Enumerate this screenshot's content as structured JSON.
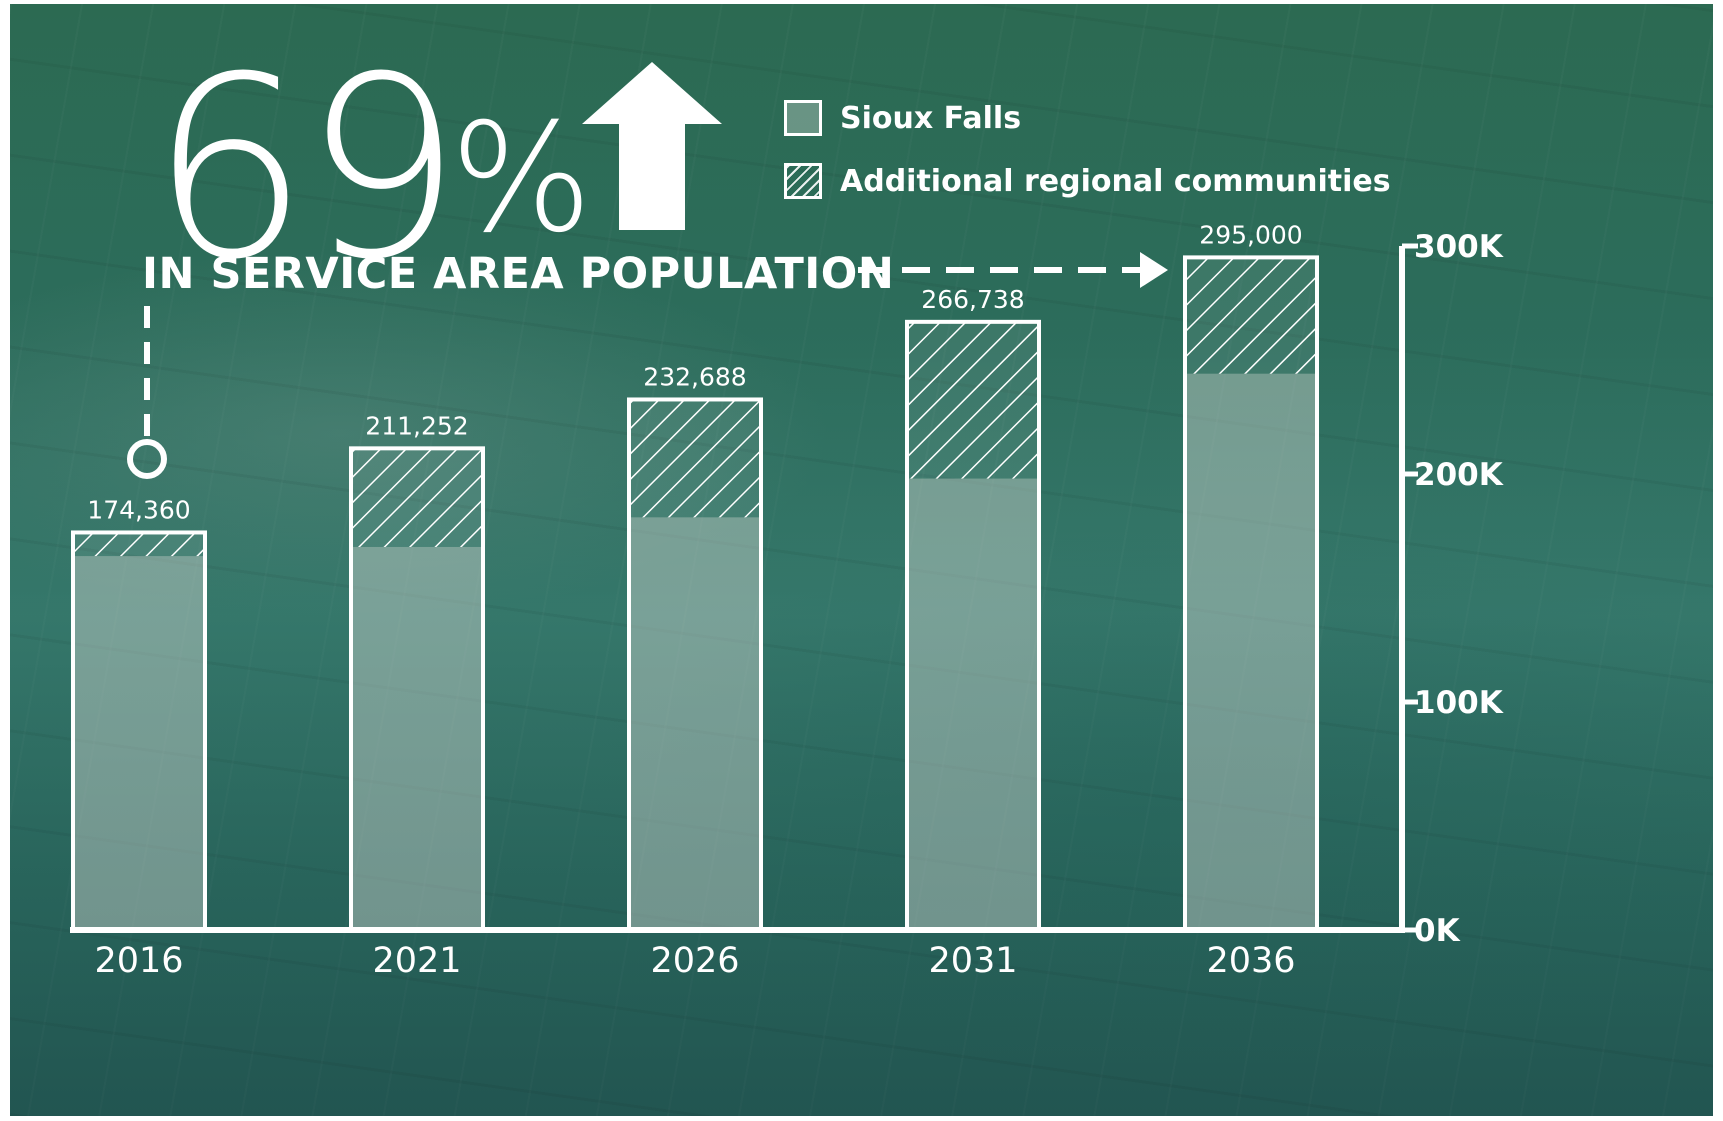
{
  "headline": {
    "big_number": "69",
    "percent_sign": "%",
    "subtitle": "IN SERVICE AREA POPULATION"
  },
  "legend": {
    "items": [
      {
        "label": "Sioux Falls",
        "style": "solid"
      },
      {
        "label": "Additional regional communities",
        "style": "hatched"
      }
    ]
  },
  "colors": {
    "bar_outline": "#ffffff",
    "bar_fill": "#d9dcd6",
    "text": "#ffffff",
    "background": "#2f7262"
  },
  "chart_data": {
    "type": "bar",
    "stacked": true,
    "title": "69% IN SERVICE AREA POPULATION",
    "categories": [
      "2016",
      "2021",
      "2026",
      "2031",
      "2036"
    ],
    "series": [
      {
        "name": "Sioux Falls",
        "values": [
          164000,
          168000,
          181000,
          198000,
          244000
        ]
      },
      {
        "name": "Additional regional communities",
        "values": [
          10360,
          43252,
          51688,
          68738,
          51000
        ]
      }
    ],
    "totals": [
      174360,
      211252,
      232688,
      266738,
      295000
    ],
    "total_labels": [
      "174,360",
      "211,252",
      "232,688",
      "266,738",
      "295,000"
    ],
    "y_ticks": [
      {
        "value": 0,
        "label": "0K"
      },
      {
        "value": 100000,
        "label": "100K"
      },
      {
        "value": 200000,
        "label": "200K"
      },
      {
        "value": 300000,
        "label": "300K"
      }
    ],
    "ylim": [
      0,
      300000
    ],
    "y_axis_position": "right",
    "xlabel": "",
    "ylabel": "",
    "grid": false,
    "legend_position": "top"
  }
}
